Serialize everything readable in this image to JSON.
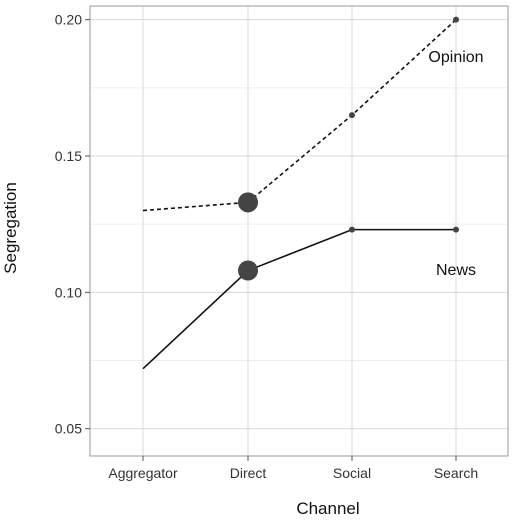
{
  "chart_data": {
    "type": "line",
    "xlabel": "Channel",
    "ylabel": "Segregation",
    "categories": [
      "Aggregator",
      "Direct",
      "Social",
      "Search"
    ],
    "ylim": [
      0.04,
      0.205
    ],
    "yticks": [
      0.05,
      0.1,
      0.15,
      0.2
    ],
    "ytick_labels": [
      "0.05",
      "0.10",
      "0.15",
      "0.20"
    ],
    "grid": true,
    "legend": "none",
    "colors": {
      "panel_border": "#9a9a9a",
      "grid_major": "#d9d9d9",
      "grid_minor": "#ececec",
      "line": "#111111",
      "point": "#444444"
    },
    "series": [
      {
        "label": "Opinion",
        "line_style": "dashed",
        "values": [
          0.13,
          0.133,
          0.165,
          0.2
        ],
        "large_point_index": 1
      },
      {
        "label": "News",
        "line_style": "solid",
        "values": [
          0.072,
          0.108,
          0.123,
          0.123
        ],
        "large_point_index": 1
      }
    ]
  }
}
